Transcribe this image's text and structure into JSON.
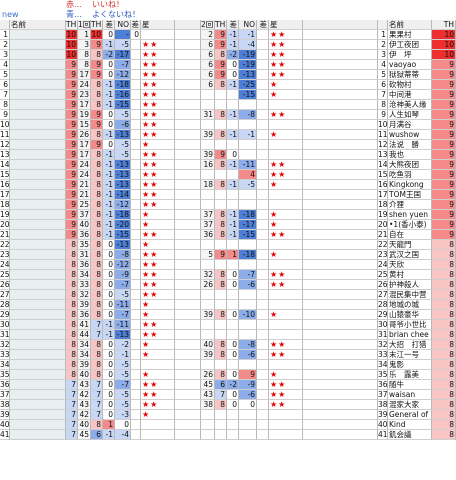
{
  "legend": {
    "new": "new",
    "red_mark": "赤…",
    "red_text": "いいね！",
    "blue_mark": "青…",
    "blue_text": "よくないね！"
  },
  "colors": {
    "red_strong": "#ee2f2f",
    "red_mid": "#f58a8a",
    "red_light": "#f9c4c4",
    "blue_strong": "#4e7fd6",
    "blue_mid": "#8cadea",
    "blue_light": "#c7d7f5",
    "gray": "#9a9a9a",
    "star": "#e00000",
    "header": "#efefef"
  },
  "headers": {
    "name": "名前",
    "th": "TH",
    "round1": "1回目",
    "th1": "TH",
    "diff1": "差",
    "no": "NO",
    "diff2": "差",
    "star1": "星",
    "round2": "2回目",
    "th2": "TH",
    "diff3": "差",
    "no2": "NO",
    "diff4": "差",
    "star2": "星",
    "name_right": "名前",
    "th_right": "TH"
  },
  "rows": [
    {
      "n": "1",
      "th": "10",
      "r1": "1",
      "t1": "10",
      "d1": "0",
      "no": "-",
      "d2": "0",
      "s1": "",
      "r2": "2",
      "t2": "9",
      "d3": "-1",
      "no2": "-1",
      "d4": "",
      "s2": "★★",
      "rn": "果果村",
      "rt": "10"
    },
    {
      "n": "2",
      "th": "10",
      "r1": "3",
      "t1": "9",
      "d1": "-1",
      "no": "-5",
      "d2": "",
      "s1": "★★",
      "r2": "6",
      "t2": "9",
      "d3": "-1",
      "no2": "-4",
      "d4": "",
      "s2": "★★",
      "rn": "伊工夜团",
      "rt": "10"
    },
    {
      "n": "3",
      "th": "10",
      "r1": "8",
      "t1": "8",
      "d1": "-2",
      "no": "-17",
      "d2": "",
      "s1": "★★",
      "r2": "6",
      "t2": "8",
      "d3": "-2",
      "no2": "-19",
      "d4": "",
      "s2": "★★",
      "rn": "伊　坪",
      "rt": "10"
    },
    {
      "n": "4",
      "th": "9",
      "r1": "8",
      "t1": "9",
      "d1": "0",
      "no": "-7",
      "d2": "",
      "s1": "★★",
      "r2": "6",
      "t2": "9",
      "d3": "0",
      "no2": "-19",
      "d4": "",
      "s2": "★★",
      "rn": "vaoyao",
      "rt": "9"
    },
    {
      "n": "5",
      "th": "9",
      "r1": "17",
      "t1": "9",
      "d1": "0",
      "no": "-12",
      "d2": "",
      "s1": "★★",
      "r2": "6",
      "t2": "9",
      "d3": "0",
      "no2": "-13",
      "d4": "",
      "s2": "★★",
      "rn": "狱狱蒂蒂",
      "rt": "9"
    },
    {
      "n": "6",
      "th": "9",
      "r1": "24",
      "t1": "8",
      "d1": "-1",
      "no": "-18",
      "d2": "",
      "s1": "★★",
      "r2": "6",
      "t2": "8",
      "d3": "-1",
      "no2": "-25",
      "d4": "",
      "s2": "★",
      "rn": "砍物村",
      "rt": "9"
    },
    {
      "n": "7",
      "th": "9",
      "r1": "23",
      "t1": "8",
      "d1": "-1",
      "no": "-16",
      "d2": "",
      "s1": "★★",
      "r2": "",
      "t2": "",
      "d3": "",
      "no2": "-15",
      "d4": "",
      "s2": "★",
      "rn": "中间港",
      "rt": "9"
    },
    {
      "n": "8",
      "th": "9",
      "r1": "17",
      "t1": "8",
      "d1": "-1",
      "no": "-15",
      "d2": "",
      "s1": "★★",
      "r2": "",
      "t2": "",
      "d3": "",
      "no2": "",
      "d4": "",
      "s2": "",
      "rn": "沧神美人缘",
      "rt": "9"
    },
    {
      "n": "9",
      "th": "9",
      "r1": "19",
      "t1": "9",
      "d1": "0",
      "no": "-5",
      "d2": "",
      "s1": "★★",
      "r2": "31",
      "t2": "8",
      "d3": "-1",
      "no2": "-8",
      "d4": "",
      "s2": "★★",
      "rn": "人生如琴",
      "rt": "9"
    },
    {
      "n": "10",
      "th": "9",
      "r1": "15",
      "t1": "9",
      "d1": "0",
      "no": "-6",
      "d2": "",
      "s1": "★★",
      "r2": "",
      "t2": "",
      "d3": "",
      "no2": "",
      "d4": "",
      "s2": "",
      "rn": "月满谷",
      "rt": "9"
    },
    {
      "n": "11",
      "th": "9",
      "r1": "26",
      "t1": "8",
      "d1": "-1",
      "no": "-13",
      "d2": "",
      "s1": "★★",
      "r2": "39",
      "t2": "8",
      "d3": "-1",
      "no2": "-1",
      "d4": "",
      "s2": "★",
      "rn": "wushow",
      "rt": "9"
    },
    {
      "n": "12",
      "th": "9",
      "r1": "17",
      "t1": "9",
      "d1": "0",
      "no": "-5",
      "d2": "",
      "s1": "★",
      "r2": "",
      "t2": "",
      "d3": "",
      "no2": "",
      "d4": "",
      "s2": "",
      "rn": "法说　勝",
      "rt": "9"
    },
    {
      "n": "13",
      "th": "9",
      "r1": "17",
      "t1": "8",
      "d1": "-1",
      "no": "-5",
      "d2": "",
      "s1": "★★",
      "r2": "39",
      "t2": "9",
      "d3": "0",
      "no2": "",
      "d4": "",
      "s2": "",
      "rn": "我也",
      "rt": "9"
    },
    {
      "n": "14",
      "th": "9",
      "r1": "24",
      "t1": "8",
      "d1": "-1",
      "no": "-13",
      "d2": "",
      "s1": "★★",
      "r2": "16",
      "t2": "8",
      "d3": "-1",
      "no2": "-11",
      "d4": "",
      "s2": "★★",
      "rn": "大熊夜团",
      "rt": "9"
    },
    {
      "n": "15",
      "th": "9",
      "r1": "24",
      "t1": "8",
      "d1": "-1",
      "no": "-13",
      "d2": "",
      "s1": "★★",
      "r2": "",
      "t2": "",
      "d3": "",
      "no2": "4",
      "d4": "",
      "s2": "★★",
      "rn": "吃鱼羽",
      "rt": "9"
    },
    {
      "n": "16",
      "th": "9",
      "r1": "21",
      "t1": "8",
      "d1": "-1",
      "no": "-13",
      "d2": "",
      "s1": "★★",
      "r2": "18",
      "t2": "8",
      "d3": "-1",
      "no2": "-5",
      "d4": "",
      "s2": "★",
      "rn": "Kingkong",
      "rt": "9"
    },
    {
      "n": "17",
      "th": "9",
      "r1": "21",
      "t1": "8",
      "d1": "-1",
      "no": "-14",
      "d2": "",
      "s1": "★★",
      "r2": "",
      "t2": "",
      "d3": "",
      "no2": "",
      "d4": "",
      "s2": "",
      "rn": "TOM王国",
      "rt": "9"
    },
    {
      "n": "18",
      "th": "9",
      "r1": "25",
      "t1": "8",
      "d1": "-1",
      "no": "-12",
      "d2": "",
      "s1": "★★",
      "r2": "",
      "t2": "",
      "d3": "",
      "no2": "",
      "d4": "",
      "s2": "",
      "rn": "介狸",
      "rt": "9"
    },
    {
      "n": "19",
      "th": "9",
      "r1": "37",
      "t1": "8",
      "d1": "-1",
      "no": "-18",
      "d2": "",
      "s1": "★",
      "r2": "37",
      "t2": "8",
      "d3": "-1",
      "no2": "-18",
      "d4": "",
      "s2": "★",
      "rn": "shen yuen",
      "rt": "9"
    },
    {
      "n": "20",
      "th": "9",
      "r1": "40",
      "t1": "8",
      "d1": "-1",
      "no": "-20",
      "d2": "",
      "s1": "★",
      "r2": "37",
      "t2": "8",
      "d3": "-1",
      "no2": "-17",
      "d4": "",
      "s2": "★",
      "rn": "•1(香小泰)",
      "rt": "9"
    },
    {
      "n": "21",
      "th": "9",
      "r1": "36",
      "t1": "8",
      "d1": "-1",
      "no": "-15",
      "d2": "",
      "s1": "★★",
      "r2": "36",
      "t2": "8",
      "d3": "-1",
      "no2": "-15",
      "d4": "",
      "s2": "★★",
      "rn": "自在",
      "rt": "9"
    },
    {
      "n": "22",
      "th": "8",
      "r1": "35",
      "t1": "8",
      "d1": "0",
      "no": "-13",
      "d2": "",
      "s1": "★",
      "r2": "",
      "t2": "",
      "d3": "",
      "no2": "",
      "d4": "",
      "s2": "",
      "rn": "天龍門",
      "rt": "8"
    },
    {
      "n": "23",
      "th": "8",
      "r1": "31",
      "t1": "8",
      "d1": "0",
      "no": "-8",
      "d2": "",
      "s1": "★★",
      "r2": "5",
      "t2": "9",
      "d3": "1",
      "no2": "-18",
      "d4": "",
      "s2": "★",
      "rn": "武汉之国",
      "rt": "8"
    },
    {
      "n": "24",
      "th": "8",
      "r1": "36",
      "t1": "8",
      "d1": "0",
      "no": "-12",
      "d2": "",
      "s1": "★★",
      "r2": "",
      "t2": "",
      "d3": "",
      "no2": "",
      "d4": "",
      "s2": "",
      "rn": "天欣",
      "rt": "8"
    },
    {
      "n": "25",
      "th": "8",
      "r1": "34",
      "t1": "8",
      "d1": "0",
      "no": "-9",
      "d2": "",
      "s1": "★★",
      "r2": "32",
      "t2": "8",
      "d3": "0",
      "no2": "-7",
      "d4": "",
      "s2": "★★",
      "rn": "黄村",
      "rt": "8"
    },
    {
      "n": "26",
      "th": "8",
      "r1": "33",
      "t1": "8",
      "d1": "0",
      "no": "-7",
      "d2": "",
      "s1": "★★",
      "r2": "26",
      "t2": "8",
      "d3": "0",
      "no2": "-6",
      "d4": "",
      "s2": "★★",
      "rn": "护神殺人",
      "rt": "8"
    },
    {
      "n": "27",
      "th": "8",
      "r1": "32",
      "t1": "8",
      "d1": "0",
      "no": "-5",
      "d2": "",
      "s1": "★★",
      "r2": "",
      "t2": "",
      "d3": "",
      "no2": "",
      "d4": "",
      "s2": "",
      "rn": "混民集中营",
      "rt": "8"
    },
    {
      "n": "28",
      "th": "8",
      "r1": "39",
      "t1": "8",
      "d1": "0",
      "no": "-11",
      "d2": "",
      "s1": "★",
      "r2": "",
      "t2": "",
      "d3": "",
      "no2": "",
      "d4": "",
      "s2": "",
      "rn": "地城の城",
      "rt": "8"
    },
    {
      "n": "29",
      "th": "8",
      "r1": "36",
      "t1": "8",
      "d1": "0",
      "no": "-7",
      "d2": "",
      "s1": "★",
      "r2": "39",
      "t2": "8",
      "d3": "0",
      "no2": "-10",
      "d4": "",
      "s2": "★",
      "rn": "山猿豪华",
      "rt": "8"
    },
    {
      "n": "30",
      "th": "8",
      "r1": "41",
      "t1": "7",
      "d1": "-1",
      "no": "-11",
      "d2": "",
      "s1": "★★",
      "r2": "",
      "t2": "",
      "d3": "",
      "no2": "",
      "d4": "",
      "s2": "",
      "rn": "哥爷小世比",
      "rt": "8"
    },
    {
      "n": "31",
      "th": "8",
      "r1": "44",
      "t1": "7",
      "d1": "-1",
      "no": "-13",
      "d2": "",
      "s1": "★★",
      "r2": "",
      "t2": "",
      "d3": "",
      "no2": "",
      "d4": "",
      "s2": "",
      "rn": "brian chee",
      "rt": "8"
    },
    {
      "n": "32",
      "th": "8",
      "r1": "34",
      "t1": "8",
      "d1": "0",
      "no": "-2",
      "d2": "",
      "s1": "★",
      "r2": "40",
      "t2": "8",
      "d3": "0",
      "no2": "-8",
      "d4": "",
      "s2": "★★",
      "rn": "大招　打猎",
      "rt": "8"
    },
    {
      "n": "33",
      "th": "8",
      "r1": "34",
      "t1": "8",
      "d1": "0",
      "no": "-1",
      "d2": "",
      "s1": "★",
      "r2": "39",
      "t2": "8",
      "d3": "0",
      "no2": "-6",
      "d4": "",
      "s2": "★★",
      "rn": "末江一号",
      "rt": "8"
    },
    {
      "n": "34",
      "th": "8",
      "r1": "39",
      "t1": "8",
      "d1": "0",
      "no": "-5",
      "d2": "",
      "s1": "",
      "r2": "",
      "t2": "",
      "d3": "",
      "no2": "",
      "d4": "",
      "s2": "",
      "rn": "鬼影",
      "rt": "8"
    },
    {
      "n": "35",
      "th": "8",
      "r1": "40",
      "t1": "8",
      "d1": "0",
      "no": "-5",
      "d2": "",
      "s1": "★",
      "r2": "26",
      "t2": "8",
      "d3": "0",
      "no2": "9",
      "d4": "",
      "s2": "★",
      "rn": "乐　露美",
      "rt": "8"
    },
    {
      "n": "36",
      "th": "7",
      "r1": "43",
      "t1": "7",
      "d1": "0",
      "no": "-7",
      "d2": "",
      "s1": "★★",
      "r2": "45",
      "t2": "6",
      "d3": "-2",
      "no2": "-9",
      "d4": "",
      "s2": "★★",
      "rn": "随牛",
      "rt": "8"
    },
    {
      "n": "37",
      "th": "7",
      "r1": "42",
      "t1": "7",
      "d1": "0",
      "no": "-5",
      "d2": "",
      "s1": "★★",
      "r2": "43",
      "t2": "7",
      "d3": "0",
      "no2": "-6",
      "d4": "",
      "s2": "★★",
      "rn": "waisan",
      "rt": "8"
    },
    {
      "n": "38",
      "th": "7",
      "r1": "43",
      "t1": "7",
      "d1": "0",
      "no": "-5",
      "d2": "",
      "s1": "★★",
      "r2": "38",
      "t2": "8",
      "d3": "0",
      "no2": "0",
      "d4": "",
      "s2": "★★",
      "rn": "混家大家",
      "rt": "8"
    },
    {
      "n": "39",
      "th": "7",
      "r1": "42",
      "t1": "7",
      "d1": "0",
      "no": "-3",
      "d2": "",
      "s1": "★",
      "r2": "",
      "t2": "",
      "d3": "",
      "no2": "",
      "d4": "",
      "s2": "",
      "rn": "General of wa",
      "rt": "8"
    },
    {
      "n": "40",
      "th": "7",
      "r1": "40",
      "t1": "8",
      "d1": "1",
      "no": "0",
      "d2": "",
      "s1": "",
      "r2": "",
      "t2": "",
      "d3": "",
      "no2": "",
      "d4": "",
      "s2": "",
      "rn": "Kind",
      "rt": "8"
    },
    {
      "n": "41",
      "th": "7",
      "r1": "45",
      "t1": "6",
      "d1": "-1",
      "no": "-4",
      "d2": "",
      "s1": "",
      "r2": "",
      "t2": "",
      "d3": "",
      "no2": "",
      "d4": "",
      "s2": "",
      "rn": "飢会議",
      "rt": "8"
    }
  ]
}
